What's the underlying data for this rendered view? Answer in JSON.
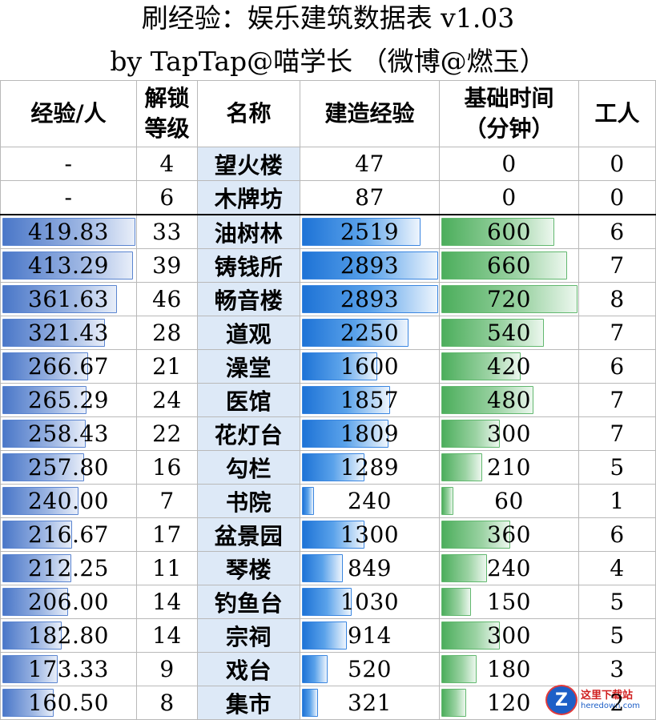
{
  "title_line1": "刷经验：娱乐建筑数据表 v1.03",
  "title_line2": "by TapTap@喵学长 （微博@燃玉）",
  "headers": {
    "exp_per_worker": "经验/人",
    "unlock_level_1": "解锁",
    "unlock_level_2": "等级",
    "name": "名称",
    "build_exp": "建造经验",
    "base_time_1": "基础时间",
    "base_time_2": "（分钟）",
    "workers": "工人"
  },
  "rows": [
    {
      "exp_per_worker": "-",
      "level": "4",
      "name": "望火楼",
      "build_exp": "47",
      "time": "0",
      "workers": "0",
      "exp_frac": 0,
      "build_frac": 0,
      "time_frac": 0
    },
    {
      "exp_per_worker": "-",
      "level": "6",
      "name": "木牌坊",
      "build_exp": "87",
      "time": "0",
      "workers": "0",
      "exp_frac": 0,
      "build_frac": 0,
      "time_frac": 0
    },
    {
      "exp_per_worker": "419.83",
      "level": "33",
      "name": "油树林",
      "build_exp": "2519",
      "time": "600",
      "workers": "6",
      "exp_frac": 1.0,
      "build_frac": 0.87,
      "time_frac": 0.83
    },
    {
      "exp_per_worker": "413.29",
      "level": "39",
      "name": "铸钱所",
      "build_exp": "2893",
      "time": "660",
      "workers": "7",
      "exp_frac": 0.98,
      "build_frac": 1.0,
      "time_frac": 0.92
    },
    {
      "exp_per_worker": "361.63",
      "level": "46",
      "name": "畅音楼",
      "build_exp": "2893",
      "time": "720",
      "workers": "8",
      "exp_frac": 0.86,
      "build_frac": 1.0,
      "time_frac": 1.0
    },
    {
      "exp_per_worker": "321.43",
      "level": "28",
      "name": "道观",
      "build_exp": "2250",
      "time": "540",
      "workers": "7",
      "exp_frac": 0.77,
      "build_frac": 0.78,
      "time_frac": 0.75
    },
    {
      "exp_per_worker": "266.67",
      "level": "21",
      "name": "澡堂",
      "build_exp": "1600",
      "time": "420",
      "workers": "6",
      "exp_frac": 0.64,
      "build_frac": 0.55,
      "time_frac": 0.58
    },
    {
      "exp_per_worker": "265.29",
      "level": "24",
      "name": "医馆",
      "build_exp": "1857",
      "time": "480",
      "workers": "7",
      "exp_frac": 0.63,
      "build_frac": 0.64,
      "time_frac": 0.67
    },
    {
      "exp_per_worker": "258.43",
      "level": "22",
      "name": "花灯台",
      "build_exp": "1809",
      "time": "300",
      "workers": "7",
      "exp_frac": 0.62,
      "build_frac": 0.63,
      "time_frac": 0.42
    },
    {
      "exp_per_worker": "257.80",
      "level": "16",
      "name": "勾栏",
      "build_exp": "1289",
      "time": "210",
      "workers": "5",
      "exp_frac": 0.61,
      "build_frac": 0.45,
      "time_frac": 0.29
    },
    {
      "exp_per_worker": "240.00",
      "level": "7",
      "name": "书院",
      "build_exp": "240",
      "time": "60",
      "workers": "1",
      "exp_frac": 0.57,
      "build_frac": 0.08,
      "time_frac": 0.08
    },
    {
      "exp_per_worker": "216.67",
      "level": "17",
      "name": "盆景园",
      "build_exp": "1300",
      "time": "360",
      "workers": "6",
      "exp_frac": 0.52,
      "build_frac": 0.45,
      "time_frac": 0.5
    },
    {
      "exp_per_worker": "212.25",
      "level": "11",
      "name": "琴楼",
      "build_exp": "849",
      "time": "240",
      "workers": "4",
      "exp_frac": 0.51,
      "build_frac": 0.29,
      "time_frac": 0.33
    },
    {
      "exp_per_worker": "206.00",
      "level": "14",
      "name": "钓鱼台",
      "build_exp": "1030",
      "time": "150",
      "workers": "5",
      "exp_frac": 0.49,
      "build_frac": 0.36,
      "time_frac": 0.21
    },
    {
      "exp_per_worker": "182.80",
      "level": "14",
      "name": "宗祠",
      "build_exp": "914",
      "time": "300",
      "workers": "5",
      "exp_frac": 0.44,
      "build_frac": 0.32,
      "time_frac": 0.42
    },
    {
      "exp_per_worker": "173.33",
      "level": "9",
      "name": "戏台",
      "build_exp": "520",
      "time": "180",
      "workers": "3",
      "exp_frac": 0.41,
      "build_frac": 0.18,
      "time_frac": 0.25
    },
    {
      "exp_per_worker": "160.50",
      "level": "8",
      "name": "集市",
      "build_exp": "321",
      "time": "120",
      "workers": "2",
      "exp_frac": 0.38,
      "build_frac": 0.11,
      "time_frac": 0.17
    }
  ],
  "watermark": {
    "main": "这里下载站",
    "sub": "heredown.com",
    "logo_letter": "Z"
  }
}
